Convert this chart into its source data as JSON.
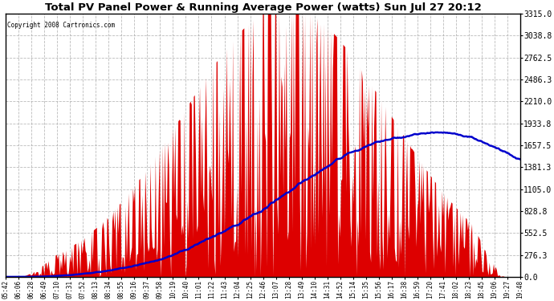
{
  "title": "Total PV Panel Power & Running Average Power (watts) Sun Jul 27 20:12",
  "copyright": "Copyright 2008 Cartronics.com",
  "bg_color": "#ffffff",
  "plot_bg_color": "#ffffff",
  "grid_color": "#aaaaaa",
  "fill_color": "#dd0000",
  "line_color": "#0000cc",
  "ylim": [
    0.0,
    3315.0
  ],
  "yticks": [
    0.0,
    276.3,
    552.5,
    828.8,
    1105.0,
    1381.3,
    1657.5,
    1933.8,
    2210.0,
    2486.3,
    2762.5,
    3038.8,
    3315.0
  ],
  "xtick_labels": [
    "05:42",
    "06:06",
    "06:28",
    "06:49",
    "07:10",
    "07:31",
    "07:52",
    "08:13",
    "08:34",
    "08:55",
    "09:16",
    "09:37",
    "09:58",
    "10:19",
    "10:40",
    "11:01",
    "11:22",
    "11:43",
    "12:04",
    "12:25",
    "12:46",
    "13:07",
    "13:28",
    "13:49",
    "14:10",
    "14:31",
    "14:52",
    "15:14",
    "15:35",
    "15:56",
    "16:17",
    "16:38",
    "16:59",
    "17:20",
    "17:41",
    "18:02",
    "18:23",
    "18:45",
    "19:06",
    "19:27",
    "19:48"
  ],
  "n_points": 500
}
